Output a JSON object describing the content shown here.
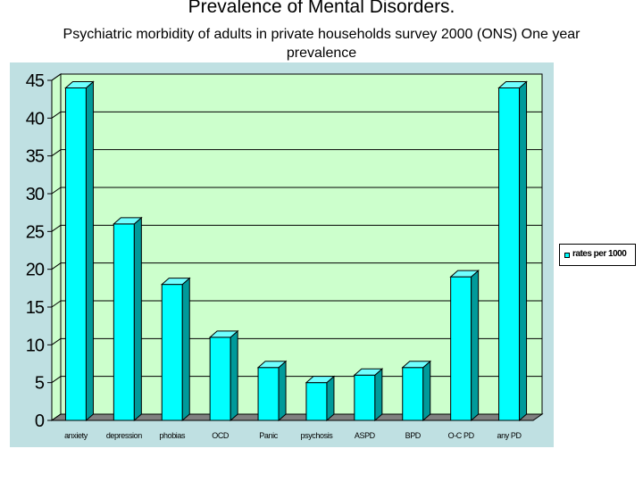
{
  "title": "Prevalence of Mental Disorders.",
  "subtitle": "Psychiatric morbidity of adults in private households survey 2000 (ONS) One year prevalence",
  "colors": {
    "frame": "#bfe0e2",
    "plot_area": "#ccffcc",
    "bar_front": "#00ffff",
    "bar_side": "#009a9a",
    "bar_top": "#6fffff",
    "floor": "#808080",
    "gridline": "#000000"
  },
  "chart_data": {
    "type": "bar",
    "title": "Prevalence of Mental Disorders.",
    "subtitle": "Psychiatric morbidity of adults in private households survey 2000 (ONS) One year prevalence",
    "categories": [
      "anxiety",
      "depression",
      "phobias",
      "OCD",
      "Panic",
      "psychosis",
      "ASPD",
      "BPD",
      "O-C PD",
      "any PD"
    ],
    "series": [
      {
        "name": "rates per 1000",
        "values": [
          44,
          26,
          18,
          11,
          7,
          5,
          6,
          7,
          19,
          44
        ]
      }
    ],
    "yticks": [
      0,
      5,
      10,
      15,
      20,
      25,
      30,
      35,
      40,
      45
    ],
    "ylim": [
      0,
      45
    ],
    "xlabel": "",
    "ylabel": "",
    "grid": true,
    "legend_position": "right",
    "style": "3d"
  }
}
